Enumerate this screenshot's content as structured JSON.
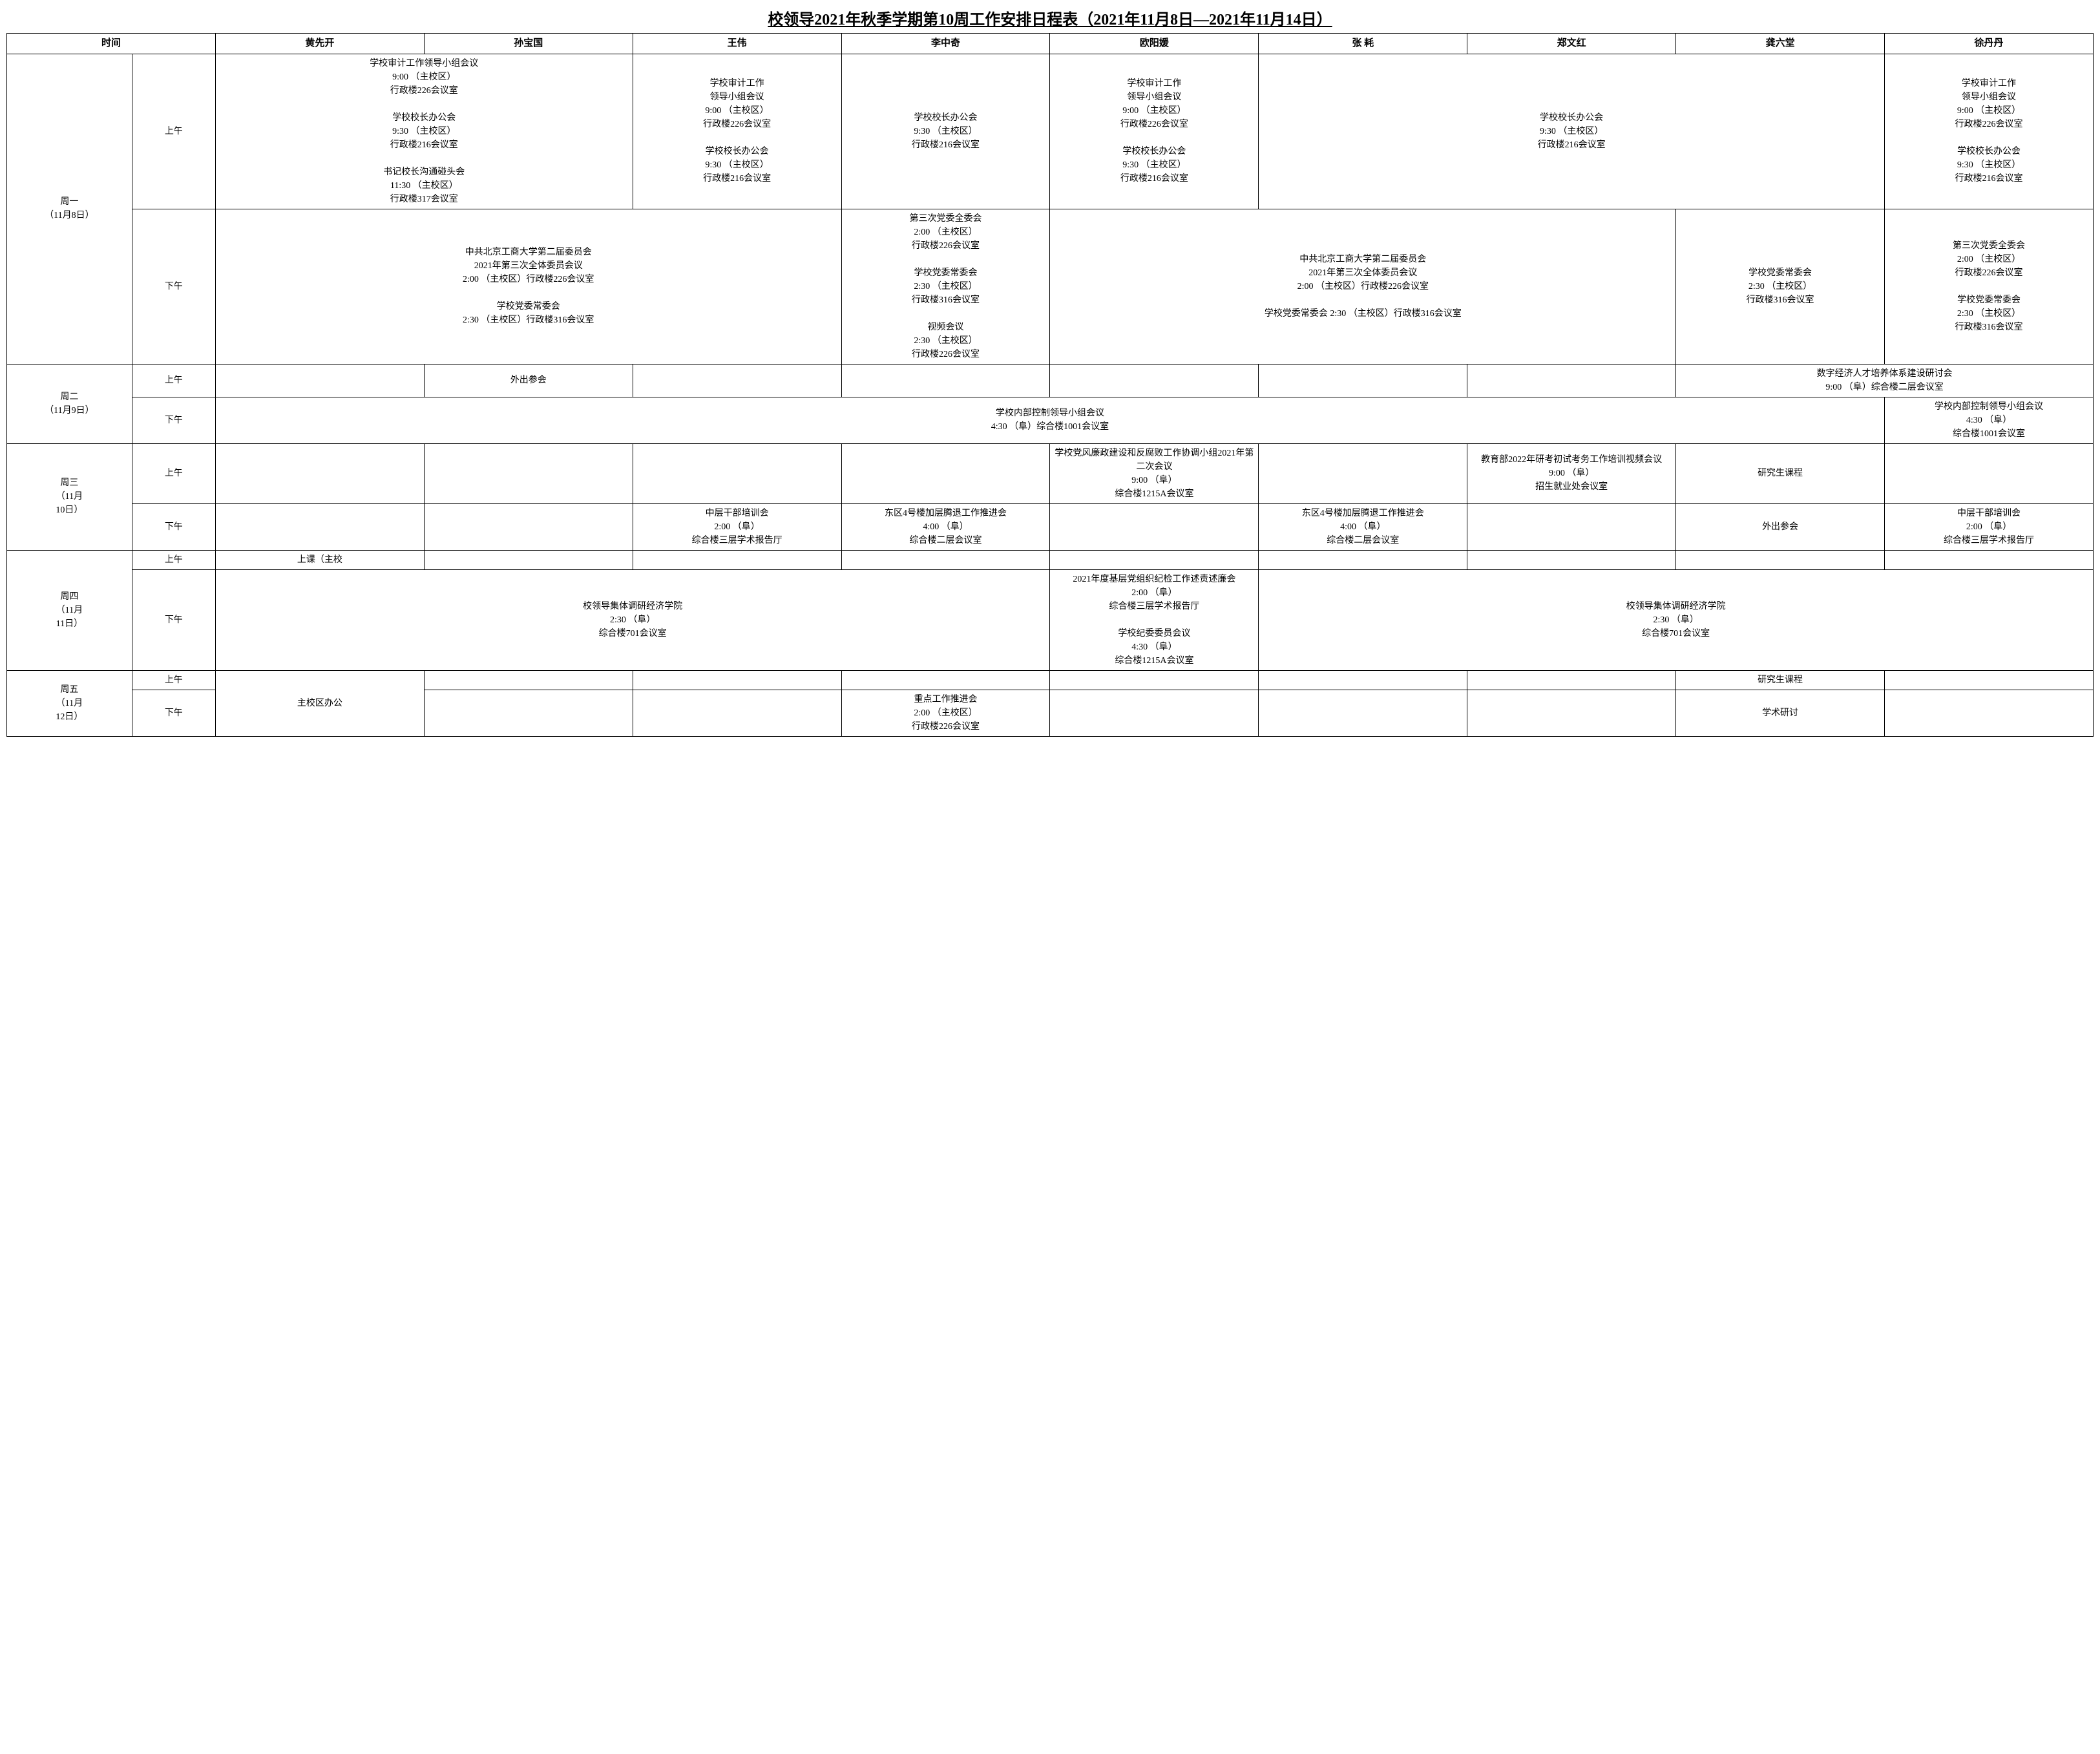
{
  "title": "校领导2021年秋季学期第10周工作安排日程表（2021年11月8日—2021年11月14日）",
  "headers": {
    "time": "时间",
    "people": [
      "黄先开",
      "孙宝国",
      "王伟",
      "李中奇",
      "欧阳媛",
      "张 耗",
      "郑文红",
      "龚六堂",
      "徐丹丹"
    ]
  },
  "days": {
    "mon": "周一\n（11月8日）",
    "tue": "周二\n（11月9日）",
    "wed": "周三\n（11月\n10日）",
    "thu": "周四\n（11月\n11日）",
    "fri": "周五\n（11月\n12日）"
  },
  "period": {
    "am": "上午",
    "pm": "下午"
  },
  "cells": {
    "mon_am_c1": "学校审计工作领导小组会议\n9:00 （主校区）\n行政楼226会议室\n\n学校校长办公会\n9:30 （主校区）\n行政楼216会议室\n\n书记校长沟通碰头会\n11:30 （主校区）\n行政楼317会议室",
    "mon_am_c2": "学校审计工作\n领导小组会议\n9:00 （主校区）\n行政楼226会议室\n\n学校校长办公会\n9:30 （主校区）\n行政楼216会议室",
    "mon_am_c3": "学校校长办公会\n9:30 （主校区）\n行政楼216会议室",
    "mon_am_c4": "学校审计工作\n领导小组会议\n9:00 （主校区）\n行政楼226会议室\n\n学校校长办公会\n9:30 （主校区）\n行政楼216会议室",
    "mon_am_c5": "学校校长办公会\n9:30 （主校区）\n行政楼216会议室",
    "mon_am_c6": "学校审计工作\n领导小组会议\n9:00 （主校区）\n行政楼226会议室\n\n学校校长办公会\n9:30 （主校区）\n行政楼216会议室",
    "mon_pm_c1": "中共北京工商大学第二届委员会\n2021年第三次全体委员会议\n2:00 （主校区）行政楼226会议室\n\n学校党委常委会\n2:30 （主校区）行政楼316会议室",
    "mon_pm_c2": "第三次党委全委会\n2:00 （主校区）\n行政楼226会议室\n\n学校党委常委会\n2:30 （主校区）\n行政楼316会议室\n\n视频会议\n2:30 （主校区）\n行政楼226会议室",
    "mon_pm_c3": "中共北京工商大学第二届委员会\n2021年第三次全体委员会议\n2:00 （主校区）行政楼226会议室\n\n学校党委常委会 2:30 （主校区）行政楼316会议室",
    "mon_pm_c4": "学校党委常委会\n2:30 （主校区）\n行政楼316会议室",
    "mon_pm_c5": "第三次党委全委会\n2:00 （主校区）\n行政楼226会议室\n\n学校党委常委会\n2:30 （主校区）\n行政楼316会议室",
    "tue_am_c1": "外出参会",
    "tue_am_c2": "数字经济人才培养体系建设研讨会\n9:00 （阜）综合楼二层会议室",
    "tue_pm_c1": "学校内部控制领导小组会议\n4:30 （阜）综合楼1001会议室",
    "tue_pm_c2": "学校内部控制领导小组会议\n4:30 （阜）\n综合楼1001会议室",
    "wed_am_c1": "学校党风廉政建设和反腐败工作协调小组2021年第二次会议\n9:00 （阜）\n综合楼1215A会议室",
    "wed_am_c2": "教育部2022年研考初试考务工作培训视频会议\n9:00 （阜）\n招生就业处会议室",
    "wed_am_c3": "研究生课程",
    "wed_pm_c1": "中层干部培训会\n2:00 （阜）\n综合楼三层学术报告厅",
    "wed_pm_c2": "东区4号楼加层腾退工作推进会\n4:00 （阜）\n综合楼二层会议室",
    "wed_pm_c3": "东区4号楼加层腾退工作推进会\n4:00 （阜）\n综合楼二层会议室",
    "wed_pm_c4": "外出参会",
    "wed_pm_c5": "中层干部培训会\n2:00 （阜）\n综合楼三层学术报告厅",
    "thu_am_c1": "上课（主校",
    "thu_pm_c1": "校领导集体调研经济学院\n2:30 （阜）\n综合楼701会议室",
    "thu_pm_c2": "2021年度基层党组织纪检工作述责述廉会\n2:00 （阜）\n综合楼三层学术报告厅\n\n学校纪委委员会议\n4:30 （阜）\n综合楼1215A会议室",
    "thu_pm_c3": "校领导集体调研经济学院\n2:30 （阜）\n综合楼701会议室",
    "fri_c1": "主校区办公",
    "fri_am_c1": "研究生课程",
    "fri_pm_c1": "重点工作推进会\n2:00 （主校区）\n行政楼226会议室",
    "fri_pm_c2": "学术研讨"
  }
}
